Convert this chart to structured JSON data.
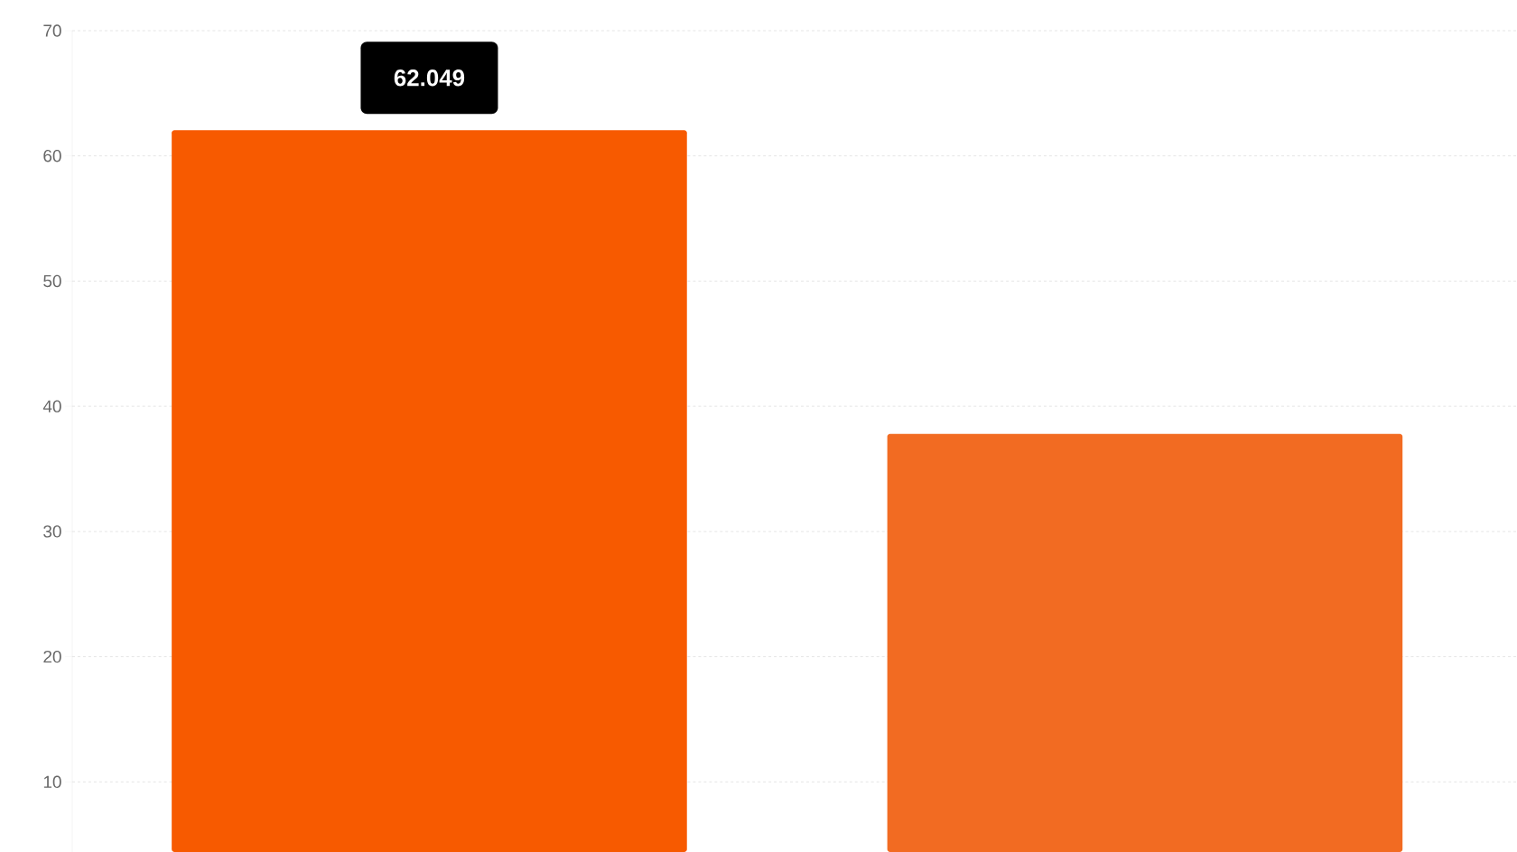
{
  "chart_data": {
    "type": "bar",
    "categories": [
      null,
      null
    ],
    "values": [
      62.049,
      37.8
    ],
    "colors": [
      "#f75a00",
      "#f26b22"
    ],
    "value_labels": [
      "62.049",
      null
    ],
    "ylim": [
      4.4,
      70
    ],
    "yticks": [
      10,
      20,
      30,
      40,
      50,
      60,
      70
    ],
    "grid": "y",
    "tick_labels": "y"
  }
}
